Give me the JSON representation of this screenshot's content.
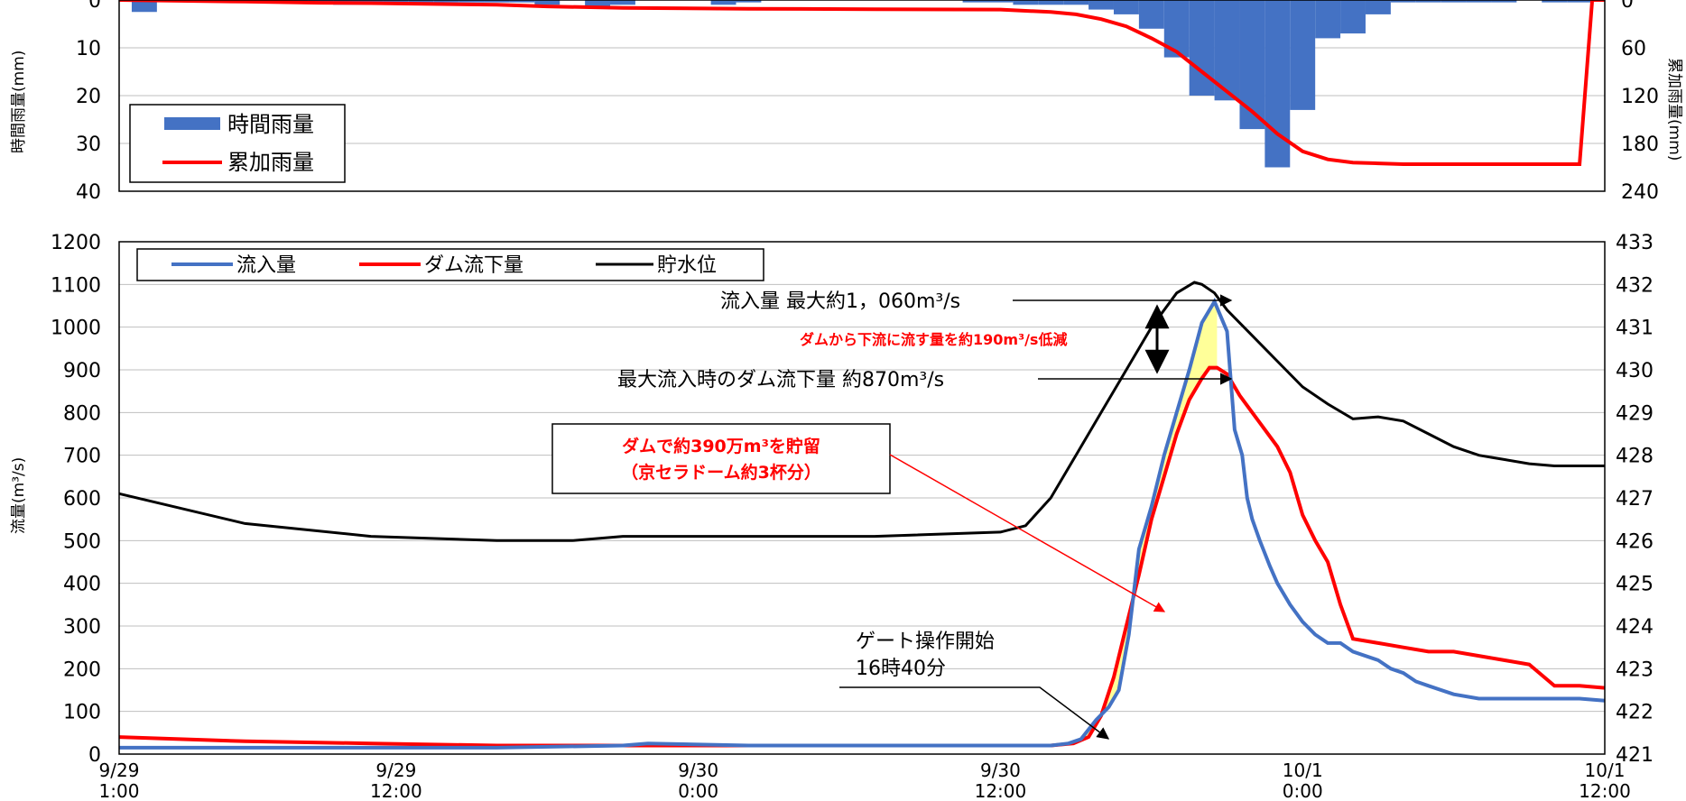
{
  "colors": {
    "rain_bar": "#4472c4",
    "cum_line": "#ff0000",
    "inflow": "#4472c4",
    "outflow": "#ff0000",
    "level": "#000000",
    "storage_fill": "#ffff99",
    "grid": "#bfbfbf"
  },
  "chart_data": [
    {
      "type": "bar",
      "ylabel_left": "時間雨量(mm)",
      "ylabel_right": "累加雨量(mm)",
      "ylim_left": [
        0,
        40
      ],
      "ylim_right": [
        0,
        240
      ],
      "y_inverted": true,
      "yticks_left": [
        "0",
        "10",
        "20",
        "30",
        "40"
      ],
      "yticks_right": [
        "0",
        "60",
        "120",
        "180",
        "240"
      ],
      "legend": [
        "時間雨量",
        "累加雨量"
      ],
      "legend_position": "middle-left",
      "hours_range": [
        0,
        59
      ],
      "series": [
        {
          "name": "時間雨量",
          "kind": "bar",
          "hours": [
            1,
            7,
            8,
            9,
            10,
            11,
            12,
            13,
            14,
            15,
            16,
            17,
            19,
            20,
            24,
            25,
            34,
            35,
            36,
            37,
            38,
            39,
            40,
            41,
            42,
            43,
            44,
            45,
            46,
            47,
            48,
            49,
            50,
            51,
            52,
            53,
            54,
            55,
            57,
            58
          ],
          "values": [
            2.5,
            0.5,
            0.5,
            1,
            1,
            1,
            0.5,
            0.5,
            0.5,
            0.5,
            0.5,
            1,
            1.5,
            1,
            1,
            0.5,
            0.5,
            0.5,
            1,
            1,
            1,
            2,
            3,
            6,
            12,
            20,
            21,
            27,
            35,
            23,
            8,
            7,
            3,
            0.5,
            0.5,
            0.5,
            0.5,
            0.5,
            0.5,
            0.5
          ]
        },
        {
          "name": "累加雨量",
          "kind": "line",
          "hours": [
            0,
            5,
            8,
            10,
            15,
            17,
            20,
            25,
            30,
            35,
            37,
            38,
            39,
            40,
            41,
            42,
            43,
            44,
            45,
            46,
            47,
            48,
            49,
            50,
            51,
            52,
            55,
            58,
            58.5,
            59
          ],
          "values": [
            0,
            2,
            3.5,
            4,
            6,
            8,
            10,
            11,
            11.5,
            12,
            15,
            18,
            24,
            33,
            48,
            65,
            90,
            115,
            140,
            168,
            190,
            200,
            204,
            205,
            206,
            206,
            206,
            206,
            0,
            0
          ]
        }
      ]
    },
    {
      "type": "line",
      "ylabel_left": "流量(m³/s)",
      "ylim_left": [
        0,
        1200
      ],
      "ylim_right": [
        421,
        433
      ],
      "yticks_left": [
        "0",
        "100",
        "200",
        "300",
        "400",
        "500",
        "600",
        "700",
        "800",
        "900",
        "1000",
        "1100",
        "1200"
      ],
      "yticks_right": [
        "421",
        "422",
        "423",
        "424",
        "425",
        "426",
        "427",
        "428",
        "429",
        "430",
        "431",
        "432",
        "433"
      ],
      "xticks": [
        {
          "hour": 0,
          "line1": "9/29",
          "line2": "1:00"
        },
        {
          "hour": 11,
          "line1": "9/29",
          "line2": "12:00"
        },
        {
          "hour": 23,
          "line1": "9/30",
          "line2": "0:00"
        },
        {
          "hour": 35,
          "line1": "9/30",
          "line2": "12:00"
        },
        {
          "hour": 47,
          "line1": "10/1",
          "line2": "0:00"
        },
        {
          "hour": 59,
          "line1": "10/1",
          "line2": "12:00"
        }
      ],
      "legend": [
        "流入量",
        "ダム流下量",
        "貯水位"
      ],
      "legend_position": "top-left",
      "series": [
        {
          "name": "流入量",
          "axis": "left",
          "hours": [
            0,
            10,
            15,
            20,
            21,
            25,
            30,
            35,
            36,
            37,
            37.7,
            38.2,
            38.8,
            39.3,
            39.7,
            40.1,
            40.5,
            41,
            41.5,
            42,
            42.5,
            43,
            43.5,
            44,
            44.3,
            44.6,
            44.8,
            45,
            45.3,
            45.7,
            46,
            46.5,
            47,
            47.5,
            48,
            48.5,
            49,
            50,
            50.5,
            51,
            51.5,
            52,
            53,
            54,
            55,
            56,
            57,
            58,
            59
          ],
          "values": [
            15,
            15,
            15,
            20,
            25,
            20,
            20,
            20,
            20,
            20,
            25,
            35,
            80,
            110,
            150,
            280,
            480,
            580,
            700,
            800,
            900,
            1010,
            1060,
            990,
            760,
            700,
            600,
            550,
            500,
            440,
            400,
            350,
            310,
            280,
            260,
            260,
            240,
            220,
            200,
            190,
            170,
            160,
            140,
            130,
            130,
            130,
            130,
            130,
            125
          ]
        },
        {
          "name": "ダム流下量",
          "axis": "left",
          "hours": [
            0,
            5,
            10,
            15,
            20,
            25,
            30,
            35,
            36,
            37,
            37.9,
            38.5,
            39,
            39.5,
            40,
            40.5,
            41,
            41.5,
            42,
            42.5,
            43,
            43.3,
            43.6,
            44,
            44.5,
            45,
            45.5,
            46,
            46.5,
            47,
            47.5,
            48,
            48.5,
            49,
            50,
            51,
            52,
            53,
            54,
            55,
            56,
            57,
            58,
            59
          ],
          "values": [
            40,
            30,
            25,
            20,
            20,
            20,
            20,
            20,
            20,
            20,
            25,
            40,
            90,
            180,
            300,
            420,
            550,
            650,
            750,
            830,
            880,
            905,
            905,
            890,
            840,
            800,
            760,
            720,
            660,
            560,
            500,
            450,
            350,
            270,
            260,
            250,
            240,
            240,
            230,
            220,
            210,
            160,
            160,
            155
          ]
        },
        {
          "name": "貯水位",
          "axis": "right",
          "hours": [
            0,
            5,
            10,
            15,
            18,
            20,
            25,
            30,
            35,
            36,
            37,
            38,
            39,
            40,
            41,
            42,
            42.7,
            43,
            43.5,
            44,
            45,
            46,
            47,
            48,
            49,
            50,
            51,
            52,
            53,
            54,
            55,
            56,
            57,
            58,
            59
          ],
          "values": [
            427.1,
            426.4,
            426.1,
            426,
            426,
            426.1,
            426.1,
            426.1,
            426.2,
            426.35,
            427,
            428,
            429,
            430,
            431,
            431.8,
            432.05,
            432,
            431.8,
            431.4,
            430.8,
            430.2,
            429.6,
            429.2,
            428.85,
            428.9,
            428.8,
            428.5,
            428.2,
            428,
            427.9,
            427.8,
            427.75,
            427.75,
            427.75
          ]
        }
      ],
      "annotations": {
        "peak_inflow": "流入量  最大約1，060m³/s",
        "reduction": "ダムから下流に流す量を約190m³/s低減",
        "outflow_at_peak": "最大流入時のダム流下量  約870m³/s",
        "storage_line1": "ダムで約390万m³を貯留",
        "storage_line2": "（京セラドーム約3杯分）",
        "gate_line1": "ゲート操作開始",
        "gate_line2": "16時40分"
      }
    }
  ]
}
